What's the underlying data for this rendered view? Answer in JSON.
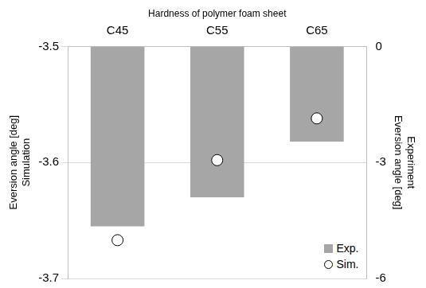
{
  "chart_data": {
    "type": "bar",
    "title": "Hardness of polymer foam sheet",
    "categories": [
      "C45",
      "C55",
      "C65"
    ],
    "series": [
      {
        "name": "Exp.",
        "type": "bar",
        "color": "#a6a6a6",
        "axis": "y2",
        "values": [
          -4.65,
          -3.9,
          -2.46
        ]
      },
      {
        "name": "Sim.",
        "type": "scatter",
        "color": "#ffffff",
        "marker": "circle",
        "values": [
          -3.667,
          -3.598,
          -3.562
        ]
      }
    ],
    "ylabel": [
      "Eversion angle [deg]",
      "Simulation"
    ],
    "y2label": [
      "Eversion angle [deg]",
      "Experiment"
    ],
    "ylim": [
      -3.7,
      -3.5
    ],
    "yticks": [
      -3.5,
      -3.6,
      -3.7
    ],
    "y2lim": [
      -6,
      0
    ],
    "y2ticks": [
      0,
      -3,
      -6
    ],
    "grid": true,
    "legend": "lower right"
  }
}
